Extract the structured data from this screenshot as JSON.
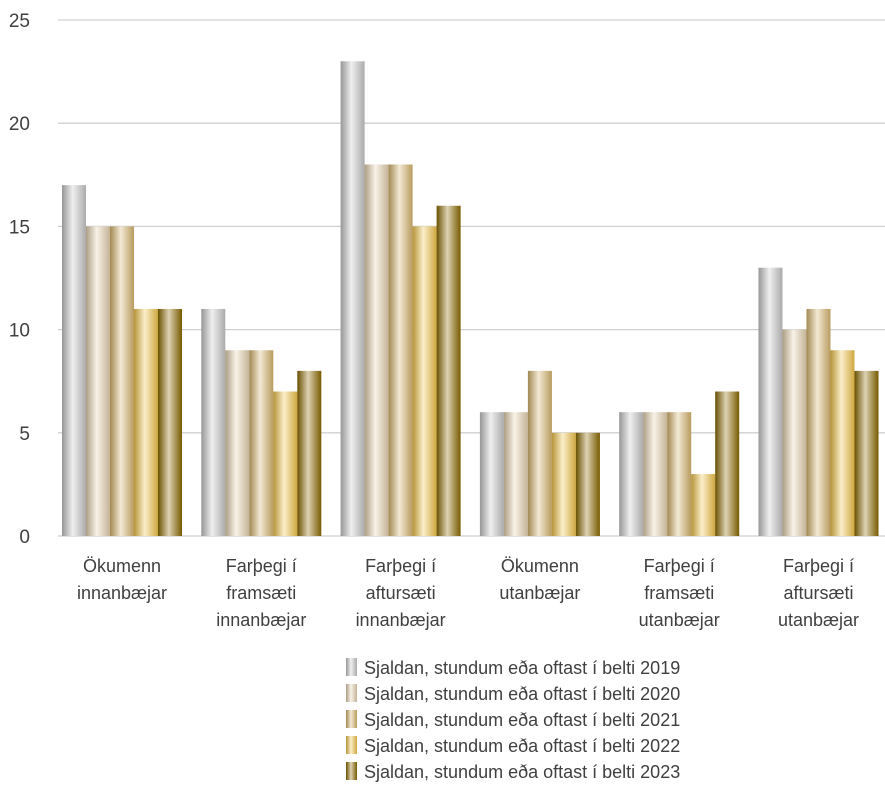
{
  "chart_data": {
    "type": "bar",
    "categories": [
      [
        "Ökumenn",
        "innanbæjar"
      ],
      [
        "Farþegi í",
        "framsæti",
        "innanbæjar"
      ],
      [
        "Farþegi í",
        "aftursæti",
        "innanbæjar"
      ],
      [
        "Ökumenn",
        "utanbæjar"
      ],
      [
        "Farþegi í",
        "framsæti",
        "utanbæjar"
      ],
      [
        "Farþegi í",
        "aftursæti",
        "utanbæjar"
      ]
    ],
    "series": [
      {
        "name": "Sjaldan, stundum eða oftast í belti 2019",
        "values": [
          17,
          11,
          23,
          6,
          6,
          13
        ],
        "color": "#c8c8c8"
      },
      {
        "name": "Sjaldan, stundum eða oftast í belti 2020",
        "values": [
          15,
          9,
          18,
          6,
          6,
          10
        ],
        "color": "#e6d3b0"
      },
      {
        "name": "Sjaldan, stundum eða oftast í belti 2021",
        "values": [
          15,
          9,
          18,
          8,
          6,
          11
        ],
        "color": "#d8b66e"
      },
      {
        "name": "Sjaldan, stundum eða oftast í belti 2022",
        "values": [
          11,
          7,
          15,
          5,
          3,
          9
        ],
        "color": "#f2c54a"
      },
      {
        "name": "Sjaldan, stundum eða oftast í belti 2023",
        "values": [
          11,
          8,
          16,
          5,
          7,
          8
        ],
        "color": "#8c6a00"
      }
    ],
    "ylim": [
      0,
      25
    ],
    "yticks": [
      0,
      5,
      10,
      15,
      20,
      25
    ],
    "grid": true,
    "legend": "bottom"
  }
}
